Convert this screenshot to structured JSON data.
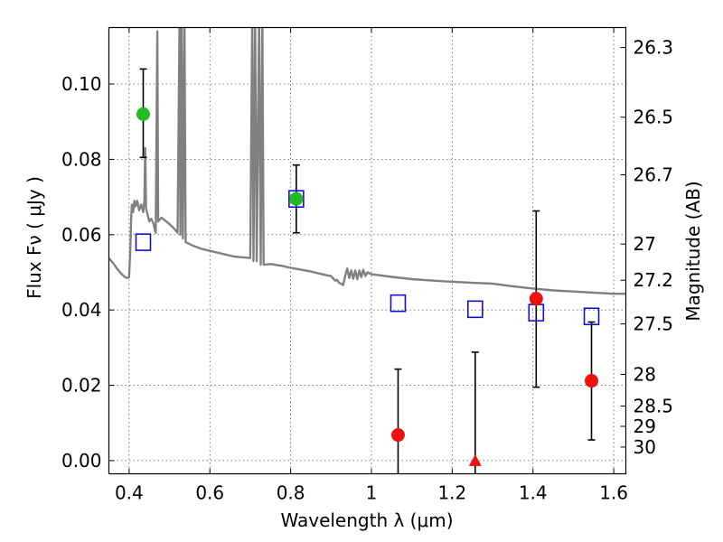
{
  "chart_data": {
    "type": "scatter",
    "xlabel": "Wavelength  λ (μm)",
    "ylabel": "Flux  Fν  ( μJy )",
    "y2label": "Magnitude (AB)",
    "xlim": [
      0.35,
      1.63
    ],
    "ylim": [
      -0.0035,
      0.115
    ],
    "xticks": [
      0.4,
      0.6,
      0.8,
      1.0,
      1.2,
      1.4,
      1.6
    ],
    "xtick_labels": [
      "0.4",
      "0.6",
      "0.8",
      "1",
      "1.2",
      "1.4",
      "1.6"
    ],
    "yticks": [
      0.0,
      0.02,
      0.04,
      0.06,
      0.08,
      0.1
    ],
    "ytick_labels": [
      "0.00",
      "0.02",
      "0.04",
      "0.06",
      "0.08",
      "0.10"
    ],
    "mag_ticks": [
      {
        "label": "26.3",
        "flux": 0.1097
      },
      {
        "label": "26.5",
        "flux": 0.0912
      },
      {
        "label": "26.7",
        "flux": 0.0759
      },
      {
        "label": "27",
        "flux": 0.0575
      },
      {
        "label": "27.2",
        "flux": 0.0479
      },
      {
        "label": "27.5",
        "flux": 0.0363
      },
      {
        "label": "28",
        "flux": 0.0229
      },
      {
        "label": "28.5",
        "flux": 0.0145
      },
      {
        "label": "29",
        "flux": 0.0091
      },
      {
        "label": "30",
        "flux": 0.0036
      }
    ],
    "grid": true,
    "colors": {
      "green": "#22bb22",
      "red": "#ee1111",
      "blue": "#1111cc",
      "model": "#808080",
      "error": "#000000"
    },
    "observed_green": [
      {
        "x": 0.435,
        "y": 0.092,
        "err_low": 0.0805,
        "err_high": 0.104
      },
      {
        "x": 0.814,
        "y": 0.0695,
        "err_low": 0.0605,
        "err_high": 0.0785
      }
    ],
    "observed_red": [
      {
        "x": 1.066,
        "y": 0.0068,
        "err_low": -0.0035,
        "err_high": 0.0243
      },
      {
        "x": 1.408,
        "y": 0.043,
        "err_low": 0.0195,
        "err_high": 0.0663
      },
      {
        "x": 1.545,
        "y": 0.0212,
        "err_low": 0.0055,
        "err_high": 0.0368
      }
    ],
    "observed_red_triangle": [
      {
        "x": 1.257,
        "y": 0.0,
        "err_low": -0.0035,
        "err_high": 0.0288
      }
    ],
    "model_squares": [
      {
        "x": 0.435,
        "y": 0.058
      },
      {
        "x": 0.814,
        "y": 0.0695
      },
      {
        "x": 1.066,
        "y": 0.0418
      },
      {
        "x": 1.257,
        "y": 0.0402
      },
      {
        "x": 1.408,
        "y": 0.0393
      },
      {
        "x": 1.545,
        "y": 0.0383
      }
    ],
    "model_spectrum": [
      [
        0.35,
        0.0537
      ],
      [
        0.36,
        0.0525
      ],
      [
        0.37,
        0.051
      ],
      [
        0.38,
        0.0497
      ],
      [
        0.39,
        0.0487
      ],
      [
        0.395,
        0.0485
      ],
      [
        0.4,
        0.0487
      ],
      [
        0.403,
        0.056
      ],
      [
        0.405,
        0.064
      ],
      [
        0.407,
        0.068
      ],
      [
        0.41,
        0.066
      ],
      [
        0.413,
        0.069
      ],
      [
        0.416,
        0.0675
      ],
      [
        0.42,
        0.069
      ],
      [
        0.425,
        0.0665
      ],
      [
        0.43,
        0.068
      ],
      [
        0.435,
        0.066
      ],
      [
        0.438,
        0.069
      ],
      [
        0.44,
        0.083
      ],
      [
        0.442,
        0.067
      ],
      [
        0.45,
        0.0635
      ],
      [
        0.455,
        0.0642
      ],
      [
        0.46,
        0.063
      ],
      [
        0.466,
        0.0605
      ],
      [
        0.47,
        0.114
      ],
      [
        0.472,
        0.0635
      ],
      [
        0.48,
        0.0645
      ],
      [
        0.49,
        0.0637
      ],
      [
        0.5,
        0.0628
      ],
      [
        0.51,
        0.0618
      ],
      [
        0.52,
        0.0605
      ],
      [
        0.525,
        0.118
      ],
      [
        0.527,
        0.06
      ],
      [
        0.53,
        0.118
      ],
      [
        0.533,
        0.059
      ],
      [
        0.537,
        0.118
      ],
      [
        0.54,
        0.058
      ],
      [
        0.55,
        0.0575
      ],
      [
        0.56,
        0.057
      ],
      [
        0.58,
        0.0562
      ],
      [
        0.6,
        0.0557
      ],
      [
        0.62,
        0.0552
      ],
      [
        0.64,
        0.0547
      ],
      [
        0.66,
        0.0542
      ],
      [
        0.68,
        0.054
      ],
      [
        0.7,
        0.0538
      ],
      [
        0.705,
        0.118
      ],
      [
        0.708,
        0.053
      ],
      [
        0.712,
        0.118
      ],
      [
        0.716,
        0.053
      ],
      [
        0.722,
        0.118
      ],
      [
        0.726,
        0.052
      ],
      [
        0.73,
        0.118
      ],
      [
        0.733,
        0.052
      ],
      [
        0.75,
        0.0522
      ],
      [
        0.78,
        0.0517
      ],
      [
        0.8,
        0.0512
      ],
      [
        0.82,
        0.0508
      ],
      [
        0.85,
        0.0502
      ],
      [
        0.87,
        0.0497
      ],
      [
        0.89,
        0.0492
      ],
      [
        0.9,
        0.049
      ],
      [
        0.91,
        0.0478
      ],
      [
        0.915,
        0.048
      ],
      [
        0.92,
        0.0472
      ],
      [
        0.925,
        0.047
      ],
      [
        0.93,
        0.0466
      ],
      [
        0.935,
        0.049
      ],
      [
        0.94,
        0.051
      ],
      [
        0.945,
        0.0485
      ],
      [
        0.95,
        0.0505
      ],
      [
        0.955,
        0.0483
      ],
      [
        0.96,
        0.0505
      ],
      [
        0.965,
        0.0482
      ],
      [
        0.97,
        0.0505
      ],
      [
        0.975,
        0.0487
      ],
      [
        0.98,
        0.0507
      ],
      [
        0.985,
        0.049
      ],
      [
        0.99,
        0.05
      ],
      [
        1.0,
        0.0495
      ],
      [
        1.05,
        0.0488
      ],
      [
        1.1,
        0.0482
      ],
      [
        1.15,
        0.0478
      ],
      [
        1.2,
        0.0475
      ],
      [
        1.25,
        0.0472
      ],
      [
        1.3,
        0.047
      ],
      [
        1.35,
        0.0463
      ],
      [
        1.4,
        0.0457
      ],
      [
        1.45,
        0.0452
      ],
      [
        1.5,
        0.0449
      ],
      [
        1.55,
        0.0446
      ],
      [
        1.6,
        0.0443
      ],
      [
        1.63,
        0.0443
      ]
    ]
  }
}
